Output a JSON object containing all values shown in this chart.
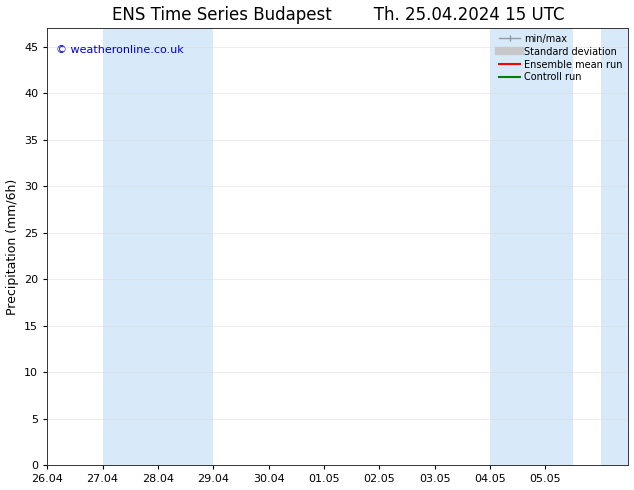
{
  "title": "ENS Time Series Budapest        Th. 25.04.2024 15 UTC",
  "ylabel": "Precipitation (mm/6h)",
  "xlabel_ticks": [
    "26.04",
    "27.04",
    "28.04",
    "29.04",
    "30.04",
    "01.05",
    "02.05",
    "03.05",
    "04.05",
    "05.05"
  ],
  "xlim": [
    0,
    10.5
  ],
  "ylim": [
    0,
    47
  ],
  "yticks": [
    0,
    5,
    10,
    15,
    20,
    25,
    30,
    35,
    40,
    45
  ],
  "background_color": "#ffffff",
  "plot_bg_color": "#ffffff",
  "shaded_bands": [
    {
      "x_start": 1.0,
      "x_end": 3.0,
      "color": "#d8eaf9"
    },
    {
      "x_start": 8.0,
      "x_end": 9.5,
      "color": "#d8eaf9"
    },
    {
      "x_start": 10.0,
      "x_end": 10.5,
      "color": "#d8eaf9"
    }
  ],
  "legend_entries": [
    {
      "label": "min/max",
      "color": "#999999"
    },
    {
      "label": "Standard deviation",
      "color": "#c8c8c8"
    },
    {
      "label": "Ensemble mean run",
      "color": "#ff0000"
    },
    {
      "label": "Controll run",
      "color": "#008000"
    }
  ],
  "watermark": "© weatheronline.co.uk",
  "watermark_color": "#0000cc",
  "title_fontsize": 12,
  "tick_fontsize": 8,
  "ylabel_fontsize": 9
}
